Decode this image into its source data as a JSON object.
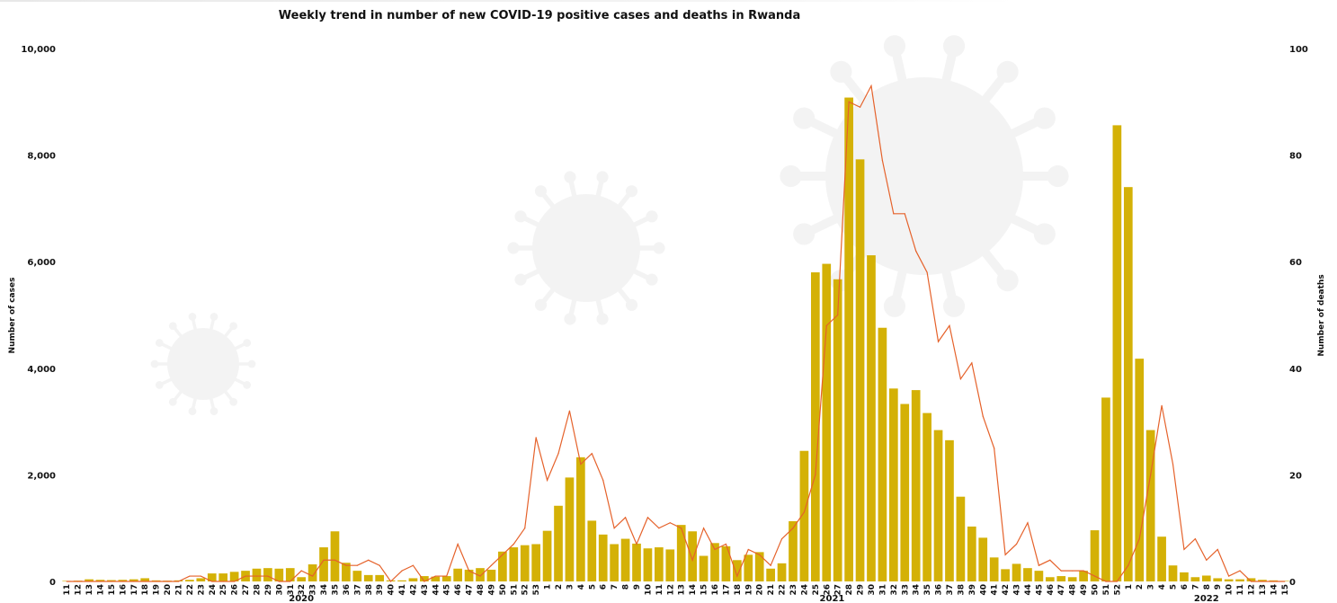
{
  "chart_data": {
    "type": "bar",
    "title": "Weekly trend in number of new COVID-19 positive cases and deaths in Rwanda",
    "ylabel": "Number of cases",
    "y2label": "Number of deaths",
    "ylim": [
      0,
      10000
    ],
    "y2lim": [
      0,
      100
    ],
    "yticks": [
      "0",
      "2,000",
      "4,000",
      "6,000",
      "8,000",
      "10,000"
    ],
    "y2ticks": [
      "0",
      "20",
      "40",
      "60",
      "80",
      "100"
    ],
    "grid": false,
    "years": [
      {
        "label": "2020",
        "start_index": 0,
        "end_index": 42
      },
      {
        "label": "2021",
        "start_index": 43,
        "end_index": 94
      },
      {
        "label": "2022",
        "start_index": 95,
        "end_index": 109
      }
    ],
    "categories": [
      "11",
      "12",
      "13",
      "14",
      "15",
      "16",
      "17",
      "18",
      "19",
      "20",
      "21",
      "22",
      "23",
      "24",
      "25",
      "26",
      "27",
      "28",
      "29",
      "30",
      "31",
      "32",
      "33",
      "34",
      "35",
      "36",
      "37",
      "38",
      "39",
      "40",
      "41",
      "42",
      "43",
      "44",
      "45",
      "46",
      "47",
      "48",
      "49",
      "50",
      "51",
      "52",
      "53",
      "1",
      "2",
      "3",
      "4",
      "5",
      "6",
      "7",
      "8",
      "9",
      "10",
      "11",
      "12",
      "13",
      "14",
      "15",
      "16",
      "17",
      "18",
      "19",
      "20",
      "21",
      "22",
      "23",
      "24",
      "25",
      "26",
      "27",
      "28",
      "29",
      "30",
      "31",
      "32",
      "33",
      "34",
      "35",
      "36",
      "37",
      "38",
      "39",
      "40",
      "41",
      "42",
      "43",
      "44",
      "45",
      "46",
      "47",
      "48",
      "49",
      "50",
      "51",
      "52",
      "1",
      "2",
      "3",
      "4",
      "5",
      "6",
      "7",
      "8",
      "9",
      "10",
      "11",
      "12",
      "13",
      "14",
      "15"
    ],
    "series": [
      {
        "name": "Number of cases",
        "type": "bar",
        "axis": "left",
        "color": "#d4b106",
        "values": [
          10,
          15,
          40,
          30,
          25,
          30,
          40,
          60,
          20,
          15,
          20,
          30,
          60,
          150,
          150,
          180,
          200,
          240,
          250,
          240,
          250,
          80,
          320,
          640,
          940,
          350,
          200,
          120,
          120,
          20,
          20,
          60,
          100,
          90,
          100,
          240,
          220,
          250,
          220,
          560,
          640,
          680,
          700,
          950,
          1420,
          1950,
          2330,
          1140,
          880,
          700,
          800,
          710,
          620,
          640,
          600,
          1060,
          940,
          480,
          720,
          660,
          400,
          500,
          550,
          240,
          340,
          1130,
          2450,
          5800,
          5960,
          5670,
          9080,
          7920,
          6120,
          4760,
          3620,
          3330,
          3590,
          3160,
          2840,
          2650,
          1590,
          1030,
          820,
          450,
          230,
          330,
          250,
          200,
          80,
          100,
          80,
          200,
          960,
          3450,
          8560,
          7400,
          4180,
          2840,
          840,
          300,
          170,
          80,
          110,
          60,
          40,
          40,
          60,
          30,
          20,
          10
        ]
      },
      {
        "name": "Number of deaths",
        "type": "line",
        "axis": "right",
        "color": "#e5622b",
        "values": [
          0,
          0,
          0,
          0,
          0,
          0,
          0,
          0,
          0,
          0,
          0,
          1,
          1,
          0,
          0,
          0,
          1,
          1,
          1,
          0,
          0,
          2,
          1,
          4,
          4,
          3,
          3,
          4,
          3,
          0,
          2,
          3,
          0,
          1,
          1,
          7,
          2,
          1,
          3,
          5,
          7,
          10,
          27,
          19,
          24,
          32,
          22,
          24,
          19,
          10,
          12,
          7,
          12,
          10,
          11,
          10,
          4,
          10,
          6,
          7,
          1,
          6,
          5,
          3,
          8,
          10,
          13,
          20,
          48,
          50,
          90,
          89,
          93,
          79,
          69,
          69,
          62,
          58,
          45,
          48,
          38,
          41,
          31,
          25,
          5,
          7,
          11,
          3,
          4,
          2,
          2,
          2,
          1,
          0,
          0,
          3,
          8,
          20,
          33,
          22,
          6,
          8,
          4,
          6,
          1,
          2,
          0,
          0,
          0,
          0
        ]
      }
    ]
  }
}
